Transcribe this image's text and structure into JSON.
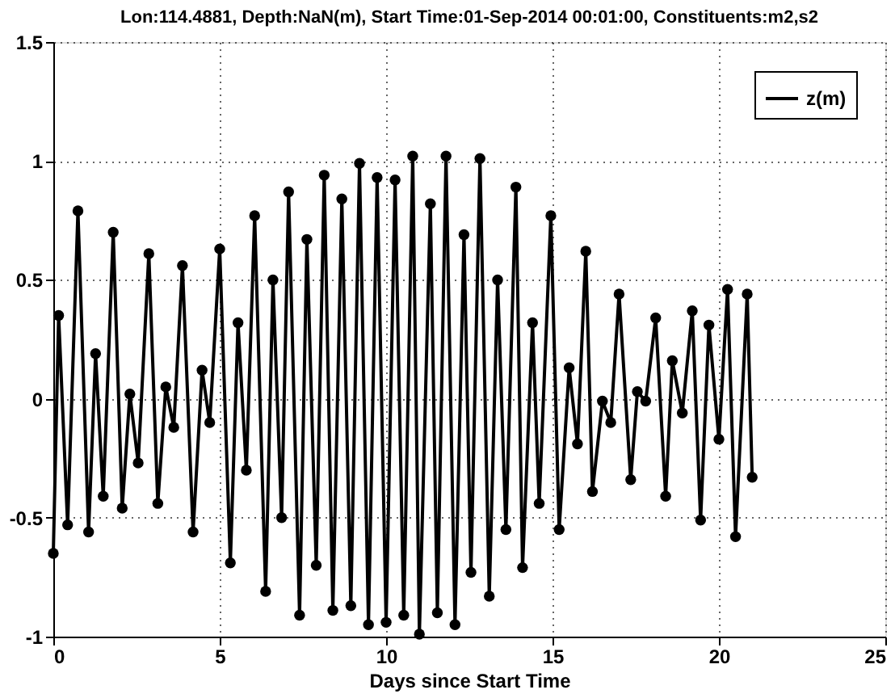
{
  "chart_data": {
    "type": "line",
    "title": "Lon:114.4881, Depth:NaN(m), Start Time:01-Sep-2014 00:01:00, Constituents:m2,s2",
    "xlabel": "Days since Start Time",
    "xlim": [
      0,
      25
    ],
    "xticks": [
      0,
      5,
      10,
      15,
      20,
      25
    ],
    "ylim": [
      -1,
      1.5
    ],
    "yticks": [
      -1,
      -0.5,
      0,
      0.5,
      1,
      1.5
    ],
    "grid": true,
    "legend": "top right",
    "marker": "circle",
    "line_style": "solid",
    "series": [
      {
        "name": "z(m)",
        "color": "#000000",
        "x": [
          0.0,
          0.16,
          0.43,
          0.74,
          1.06,
          1.27,
          1.5,
          1.8,
          2.07,
          2.3,
          2.55,
          2.87,
          3.14,
          3.38,
          3.62,
          3.88,
          4.2,
          4.47,
          4.7,
          5.0,
          5.32,
          5.55,
          5.8,
          6.05,
          6.38,
          6.6,
          6.86,
          7.07,
          7.4,
          7.62,
          7.9,
          8.14,
          8.4,
          8.67,
          8.94,
          9.2,
          9.47,
          9.73,
          10.0,
          10.27,
          10.53,
          10.8,
          11.0,
          11.33,
          11.54,
          11.8,
          12.07,
          12.34,
          12.55,
          12.82,
          13.1,
          13.35,
          13.6,
          13.9,
          14.1,
          14.4,
          14.6,
          14.95,
          15.2,
          15.5,
          15.75,
          16.0,
          16.2,
          16.5,
          16.75,
          17.0,
          17.35,
          17.55,
          17.8,
          18.1,
          18.4,
          18.6,
          18.9,
          19.2,
          19.45,
          19.7,
          20.0,
          20.26,
          20.5,
          20.85,
          21.0
        ],
        "values": [
          -0.65,
          0.35,
          -0.53,
          0.79,
          -0.56,
          0.19,
          -0.41,
          0.7,
          -0.46,
          0.02,
          -0.27,
          0.61,
          -0.44,
          0.05,
          -0.12,
          0.56,
          -0.56,
          0.12,
          -0.1,
          0.63,
          -0.69,
          0.32,
          -0.3,
          0.77,
          -0.81,
          0.5,
          -0.5,
          0.87,
          -0.91,
          0.67,
          -0.7,
          0.94,
          -0.89,
          0.84,
          -0.87,
          0.99,
          -0.95,
          0.93,
          -0.94,
          0.92,
          -0.91,
          1.02,
          -0.99,
          0.82,
          -0.9,
          1.02,
          -0.95,
          0.69,
          -0.73,
          1.01,
          -0.83,
          0.5,
          -0.55,
          0.89,
          -0.71,
          0.32,
          -0.44,
          0.77,
          -0.55,
          0.13,
          -0.19,
          0.62,
          -0.39,
          -0.01,
          -0.1,
          0.44,
          -0.34,
          0.03,
          -0.01,
          0.34,
          -0.41,
          0.16,
          -0.06,
          0.37,
          -0.51,
          0.31,
          -0.17,
          0.46,
          -0.58,
          0.44,
          -0.33
        ]
      }
    ]
  }
}
